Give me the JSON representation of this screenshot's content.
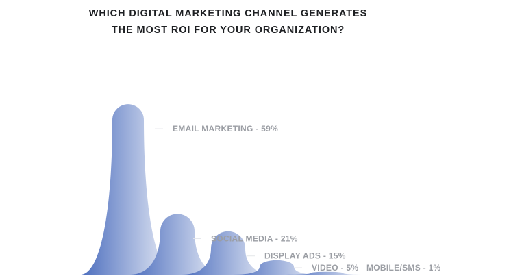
{
  "chart_data": {
    "type": "area",
    "title_lines": [
      "WHICH DIGITAL MARKETING CHANNEL GENERATES",
      "THE MOST ROI FOR YOUR ORGANIZATION?"
    ],
    "categories": [
      "EMAIL MARKETING",
      "SOCIAL MEDIA",
      "DISPLAY ADS",
      "VIDEO",
      "MOBILE/SMS"
    ],
    "values": [
      59,
      21,
      15,
      5,
      1
    ],
    "labels": [
      "EMAIL MARKETING - 59%",
      "SOCIAL MEDIA - 21%",
      "DISPLAY ADS - 15%",
      "VIDEO - 5%",
      "MOBILE/SMS - 1%"
    ],
    "ylim": [
      0,
      64
    ],
    "grid": false,
    "colors": {
      "fill_dark": "#4a6cbd",
      "fill_light": "#eef1f8",
      "title": "#1d1f22",
      "label": "#9b9ea4"
    }
  }
}
